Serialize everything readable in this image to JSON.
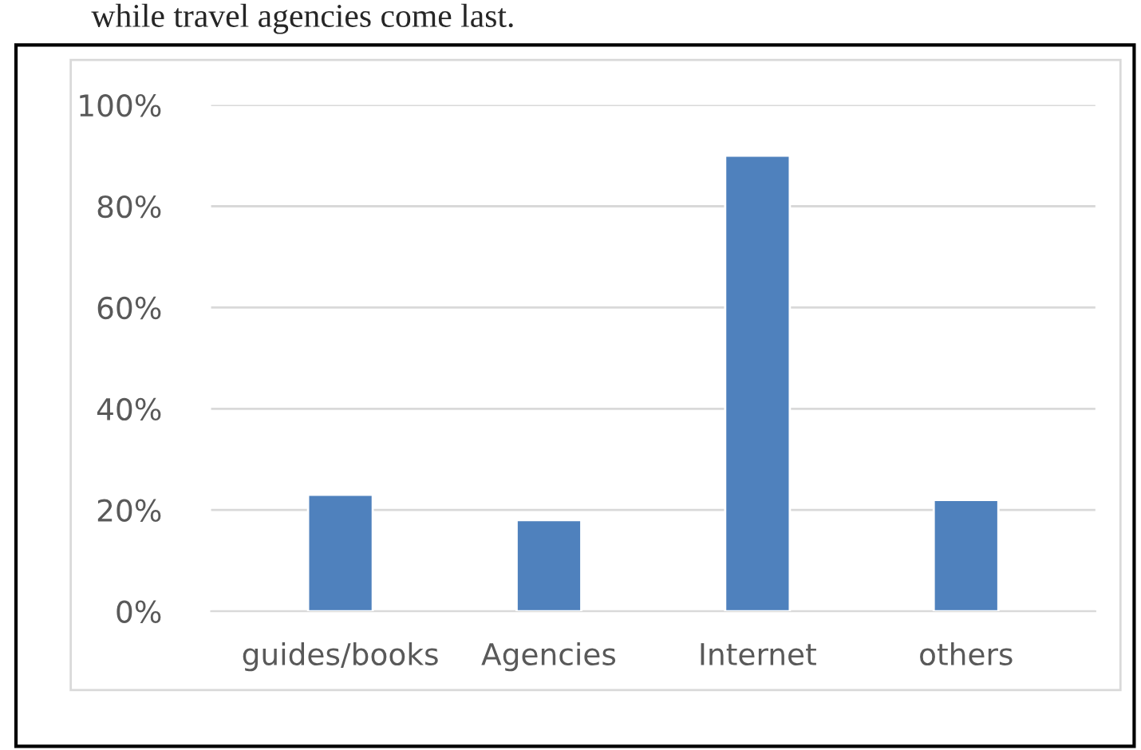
{
  "chart_data": {
    "type": "bar",
    "categories": [
      "guides/books",
      "Agencies",
      "Internet",
      "others"
    ],
    "values": [
      23,
      18,
      90,
      22
    ],
    "color": "#4f81bd",
    "ylim": [
      0,
      100
    ],
    "yticks": [
      {
        "value": 0,
        "label": "0%"
      },
      {
        "value": 20,
        "label": "20%"
      },
      {
        "value": 40,
        "label": "40%"
      },
      {
        "value": 60,
        "label": "60%"
      },
      {
        "value": 80,
        "label": "80%"
      },
      {
        "value": 100,
        "label": "100%"
      }
    ],
    "grid": "y",
    "annotations": [
      "while travel agencies come last."
    ]
  }
}
